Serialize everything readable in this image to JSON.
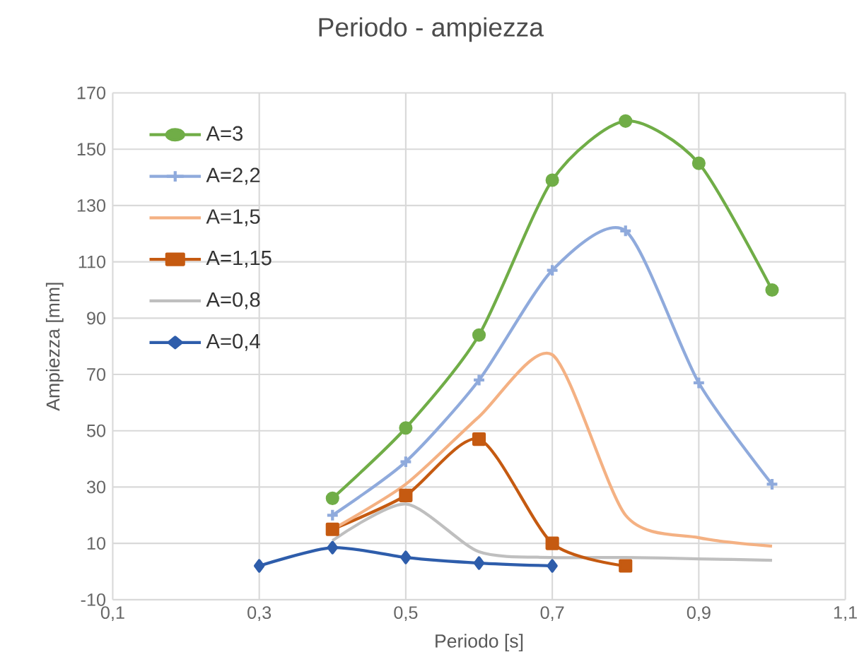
{
  "chart_data": {
    "type": "line",
    "title": "Periodo - ampiezza",
    "xlabel": "Periodo [s]",
    "ylabel": "Ampiezza [mm]",
    "xlim": [
      0.1,
      1.1
    ],
    "xticks": [
      {
        "value": 0.1,
        "label": "0,1"
      },
      {
        "value": 0.3,
        "label": "0,3"
      },
      {
        "value": 0.5,
        "label": "0,5"
      },
      {
        "value": 0.7,
        "label": "0,7"
      },
      {
        "value": 0.9,
        "label": "0,9"
      },
      {
        "value": 1.1,
        "label": "1,1"
      }
    ],
    "ylim": [
      -10,
      170
    ],
    "yticks": [
      -10,
      10,
      30,
      50,
      70,
      90,
      110,
      130,
      150,
      170
    ],
    "grid": true,
    "legend": "top left",
    "line_style": "solid",
    "series": [
      {
        "name": "A=3",
        "color": "#70ad47",
        "marker": "circle",
        "x": [
          0.4,
          0.5,
          0.6,
          0.7,
          0.8,
          0.9,
          1.0
        ],
        "values": [
          26,
          51,
          84,
          139,
          160,
          145,
          100
        ]
      },
      {
        "name": "A=2,2",
        "color": "#8faadc",
        "marker": "cross",
        "x": [
          0.4,
          0.5,
          0.6,
          0.7,
          0.8,
          0.9,
          1.0
        ],
        "values": [
          20,
          39,
          68,
          107,
          121,
          67,
          31
        ]
      },
      {
        "name": "A=1,5",
        "color": "#f4b183",
        "marker": "none",
        "x": [
          0.4,
          0.5,
          0.6,
          0.7,
          0.8,
          0.9,
          1.0
        ],
        "values": [
          15,
          31,
          55,
          77,
          20,
          12,
          9
        ]
      },
      {
        "name": "A=1,15",
        "color": "#c55a11",
        "marker": "square",
        "x": [
          0.4,
          0.5,
          0.6,
          0.7,
          0.8
        ],
        "values": [
          15,
          27,
          47,
          10,
          2
        ]
      },
      {
        "name": "A=0,8",
        "color": "#bfbfbf",
        "marker": "none",
        "x": [
          0.4,
          0.5,
          0.6,
          0.7,
          0.8,
          0.9,
          1.0
        ],
        "values": [
          11,
          24,
          7,
          5,
          5,
          4.5,
          4
        ]
      },
      {
        "name": "A=0,4",
        "color": "#2e5dab",
        "marker": "diamond",
        "x": [
          0.3,
          0.4,
          0.5,
          0.6,
          0.7
        ],
        "values": [
          2,
          8.5,
          5,
          3,
          2
        ]
      }
    ]
  }
}
